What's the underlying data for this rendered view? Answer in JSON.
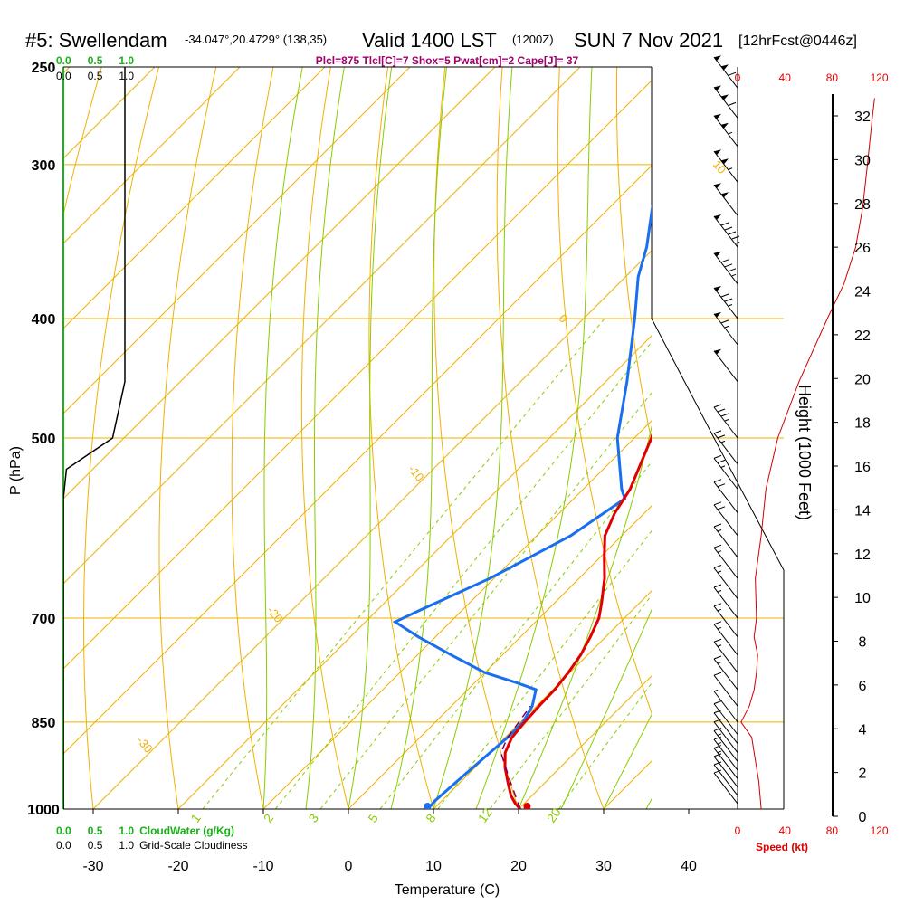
{
  "header": {
    "station": "#5: Swellendam",
    "coords": "-34.047°,20.4729° (138,35)",
    "valid": "Valid 1400 LST",
    "zulu": "(1200Z)",
    "date": "SUN 7 Nov 2021",
    "forecast": "[12hrFcst@0446z]",
    "indices": "Plcl=875 Tlcl[C]=7 Shox=5 Pwat[cm]=2 Cape[J]= 37"
  },
  "colors": {
    "temperature": "#e00000",
    "dewpoint": "#1a6ef0",
    "isobar": "#f0b000",
    "isotherm": "#f0b000",
    "dry_adiabat": "#f0b000",
    "moist_adiabat": "#88cc00",
    "mixing_ratio": "#88cc00",
    "cloud": "#1ab01a",
    "parcel": "#800060",
    "wind_speed": "#e00000",
    "height_profile": "#cc0000"
  },
  "chart_data": {
    "type": "skew-t",
    "xlabel": "Temperature (C)",
    "ylabel": "P (hPa)",
    "right_axis_label": "Height (1000 Feet)",
    "x_ticks": [
      "-30",
      "-20",
      "-10",
      "0",
      "10",
      "20",
      "30",
      "40"
    ],
    "x_tick_values": [
      -30,
      -20,
      -10,
      0,
      10,
      20,
      30,
      40
    ],
    "pressure_levels": [
      250,
      300,
      400,
      500,
      700,
      850,
      1000
    ],
    "pressure_labels": [
      "250",
      "300",
      "400",
      "500",
      "700",
      "850",
      "1000"
    ],
    "height_ticks": [
      "0",
      "2",
      "4",
      "6",
      "8",
      "10",
      "12",
      "14",
      "16",
      "18",
      "20",
      "22",
      "24",
      "26",
      "28",
      "30",
      "32"
    ],
    "height_values": [
      0,
      2,
      4,
      6,
      8,
      10,
      12,
      14,
      16,
      18,
      20,
      22,
      24,
      26,
      28,
      30,
      32
    ],
    "dry_adiabat_labels": [
      {
        "text": "10",
        "p": 300,
        "t": -33
      },
      {
        "text": "0",
        "p": 400,
        "t": -33
      },
      {
        "text": "-10",
        "p": 530,
        "t": -33
      },
      {
        "text": "-20",
        "p": 690,
        "t": -33
      },
      {
        "text": "-30",
        "p": 880,
        "t": -33
      },
      {
        "text": "0",
        "p": 340,
        "t": 35
      },
      {
        "text": "10",
        "p": 420,
        "t": 41
      },
      {
        "text": "20",
        "p": 490,
        "t": 47
      },
      {
        "text": "30",
        "p": 580,
        "t": 55
      }
    ],
    "mixing_ratio_labels": [
      "1",
      "2",
      "3",
      "5",
      "8",
      "12",
      "20"
    ],
    "mixing_ratio_values": [
      1,
      2,
      3,
      5,
      8,
      12,
      20
    ],
    "wind_speed_ticks": [
      "0",
      "40",
      "80",
      "120"
    ],
    "wind_speed_label": "Speed (kt)",
    "cloud_water_ticks": [
      "0.0",
      "0.5",
      "1.0"
    ],
    "cloud_water_label": "CloudWater (g/Kg)",
    "cloudiness_ticks": [
      "0.0",
      "0.5",
      "1.0"
    ],
    "cloudiness_label": "Grid-Scale Cloudiness",
    "temperature": [
      {
        "p": 1000,
        "t": 20.2
      },
      {
        "p": 990,
        "t": 19
      },
      {
        "p": 975,
        "t": 17.5
      },
      {
        "p": 950,
        "t": 15.5
      },
      {
        "p": 925,
        "t": 13.5
      },
      {
        "p": 900,
        "t": 11.8
      },
      {
        "p": 875,
        "t": 10.8
      },
      {
        "p": 850,
        "t": 10.5
      },
      {
        "p": 825,
        "t": 10.3
      },
      {
        "p": 800,
        "t": 10.2
      },
      {
        "p": 775,
        "t": 9.8
      },
      {
        "p": 750,
        "t": 9.2
      },
      {
        "p": 725,
        "t": 8.2
      },
      {
        "p": 700,
        "t": 7
      },
      {
        "p": 680,
        "t": 5.5
      },
      {
        "p": 650,
        "t": 3
      },
      {
        "p": 625,
        "t": 0.5
      },
      {
        "p": 600,
        "t": -2
      },
      {
        "p": 575,
        "t": -3.5
      },
      {
        "p": 550,
        "t": -4.5
      },
      {
        "p": 500,
        "t": -8
      },
      {
        "p": 450,
        "t": -12.5
      },
      {
        "p": 400,
        "t": -18.5
      },
      {
        "p": 370,
        "t": -22.5
      },
      {
        "p": 350,
        "t": -25.5
      },
      {
        "p": 325,
        "t": -30
      },
      {
        "p": 300,
        "t": -35
      },
      {
        "p": 275,
        "t": -40
      },
      {
        "p": 265,
        "t": -42
      }
    ],
    "dewpoint": [
      {
        "p": 995,
        "t": 9.3
      },
      {
        "p": 985,
        "t": 9.2
      },
      {
        "p": 950,
        "t": 9.5
      },
      {
        "p": 900,
        "t": 10
      },
      {
        "p": 875,
        "t": 10.3
      },
      {
        "p": 850,
        "t": 10.3
      },
      {
        "p": 825,
        "t": 9.5
      },
      {
        "p": 800,
        "t": 8
      },
      {
        "p": 790,
        "t": 5
      },
      {
        "p": 775,
        "t": 0
      },
      {
        "p": 750,
        "t": -6
      },
      {
        "p": 725,
        "t": -12
      },
      {
        "p": 705,
        "t": -16.5
      },
      {
        "p": 690,
        "t": -15
      },
      {
        "p": 650,
        "t": -10.5
      },
      {
        "p": 600,
        "t": -6
      },
      {
        "p": 560,
        "t": -4
      },
      {
        "p": 550,
        "t": -5.5
      },
      {
        "p": 500,
        "t": -12
      },
      {
        "p": 450,
        "t": -17.5
      },
      {
        "p": 400,
        "t": -24
      },
      {
        "p": 370,
        "t": -28.5
      },
      {
        "p": 350,
        "t": -31
      },
      {
        "p": 325,
        "t": -35
      },
      {
        "p": 300,
        "t": -39
      },
      {
        "p": 275,
        "t": -44
      },
      {
        "p": 265,
        "t": -46
      }
    ],
    "parcel": [
      {
        "p": 1000,
        "t": 20.2
      },
      {
        "p": 950,
        "t": 15.8
      },
      {
        "p": 900,
        "t": 11.3
      },
      {
        "p": 875,
        "t": 10.3
      },
      {
        "p": 850,
        "t": 9.8
      },
      {
        "p": 825,
        "t": 9.3
      }
    ],
    "surface_temperature": 21,
    "surface_dewpoint": 9.3,
    "cloudiness": [
      {
        "p": 250,
        "v": 1
      },
      {
        "p": 450,
        "v": 1
      },
      {
        "p": 500,
        "v": 0.8
      },
      {
        "p": 530,
        "v": 0.05
      },
      {
        "p": 560,
        "v": 0
      },
      {
        "p": 1000,
        "v": 0
      }
    ],
    "wind_speed_profile": [
      {
        "p": 1000,
        "s": 20
      },
      {
        "p": 975,
        "s": 19
      },
      {
        "p": 950,
        "s": 18
      },
      {
        "p": 925,
        "s": 16
      },
      {
        "p": 900,
        "s": 14
      },
      {
        "p": 875,
        "s": 12
      },
      {
        "p": 850,
        "s": 3
      },
      {
        "p": 825,
        "s": 10
      },
      {
        "p": 800,
        "s": 14
      },
      {
        "p": 775,
        "s": 16
      },
      {
        "p": 750,
        "s": 17
      },
      {
        "p": 725,
        "s": 14
      },
      {
        "p": 700,
        "s": 16
      },
      {
        "p": 650,
        "s": 15
      },
      {
        "p": 600,
        "s": 20
      },
      {
        "p": 550,
        "s": 24
      },
      {
        "p": 500,
        "s": 34
      },
      {
        "p": 450,
        "s": 52
      },
      {
        "p": 400,
        "s": 76
      },
      {
        "p": 375,
        "s": 90
      },
      {
        "p": 350,
        "s": 100
      },
      {
        "p": 325,
        "s": 106
      },
      {
        "p": 300,
        "s": 110
      },
      {
        "p": 275,
        "s": 114
      },
      {
        "p": 265,
        "s": 116
      }
    ],
    "wind_barbs": [
      {
        "p": 990,
        "s": 12
      },
      {
        "p": 975,
        "s": 13
      },
      {
        "p": 960,
        "s": 14
      },
      {
        "p": 945,
        "s": 15
      },
      {
        "p": 930,
        "s": 15
      },
      {
        "p": 915,
        "s": 15
      },
      {
        "p": 900,
        "s": 14
      },
      {
        "p": 885,
        "s": 13
      },
      {
        "p": 870,
        "s": 12
      },
      {
        "p": 850,
        "s": 5
      },
      {
        "p": 825,
        "s": 10
      },
      {
        "p": 800,
        "s": 15
      },
      {
        "p": 775,
        "s": 15
      },
      {
        "p": 750,
        "s": 15
      },
      {
        "p": 725,
        "s": 15
      },
      {
        "p": 700,
        "s": 15
      },
      {
        "p": 675,
        "s": 15
      },
      {
        "p": 650,
        "s": 15
      },
      {
        "p": 625,
        "s": 15
      },
      {
        "p": 600,
        "s": 20
      },
      {
        "p": 575,
        "s": 20
      },
      {
        "p": 550,
        "s": 25
      },
      {
        "p": 525,
        "s": 25
      },
      {
        "p": 500,
        "s": 35
      },
      {
        "p": 450,
        "s": 50
      },
      {
        "p": 420,
        "s": 65
      },
      {
        "p": 400,
        "s": 75
      },
      {
        "p": 375,
        "s": 85
      },
      {
        "p": 350,
        "s": 95
      },
      {
        "p": 330,
        "s": 100
      },
      {
        "p": 310,
        "s": 105
      },
      {
        "p": 290,
        "s": 105
      },
      {
        "p": 275,
        "s": 110
      },
      {
        "p": 260,
        "s": 110
      }
    ]
  }
}
